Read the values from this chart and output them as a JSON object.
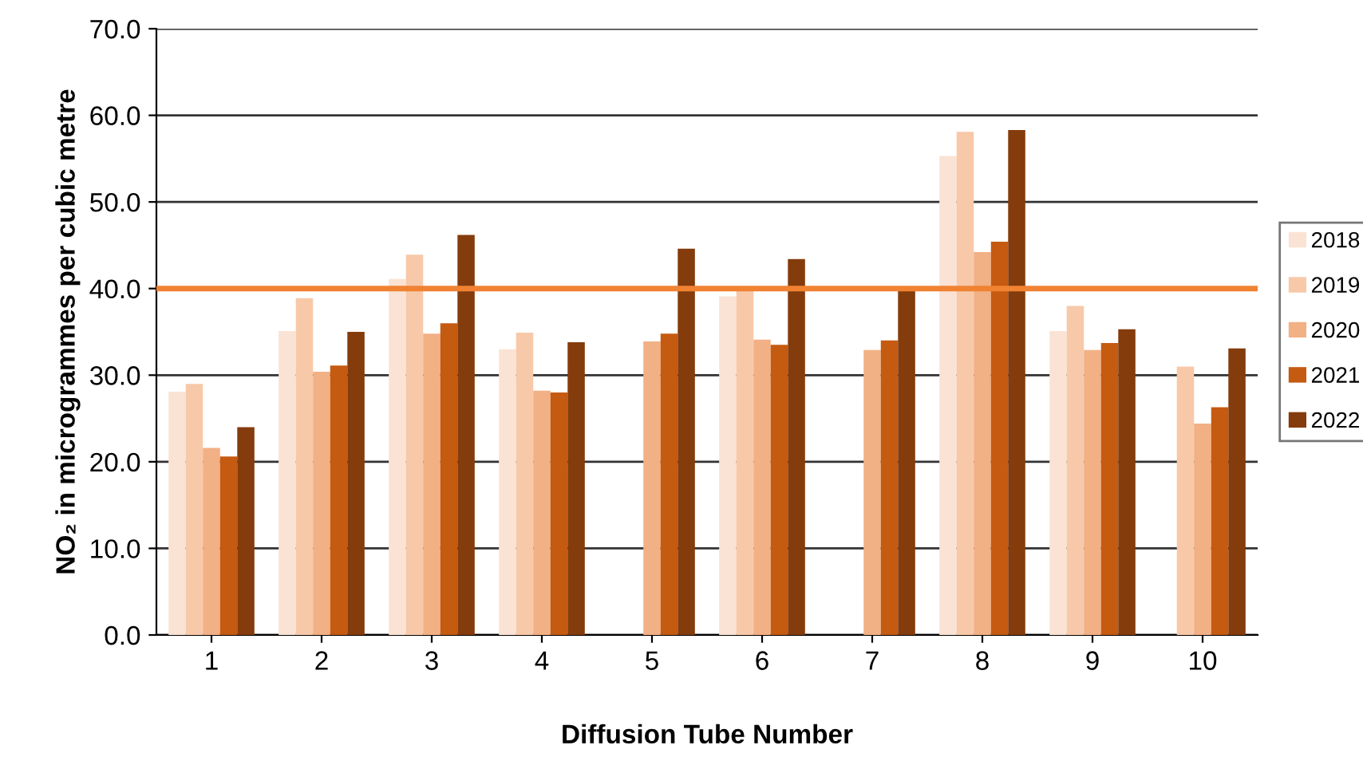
{
  "chart_data": {
    "type": "bar",
    "xlabel": "Diffusion Tube Number",
    "ylabel": "NO₂ in microgrammes per cubic metre",
    "categories": [
      "1",
      "2",
      "3",
      "4",
      "5",
      "6",
      "7",
      "8",
      "9",
      "10"
    ],
    "series": [
      {
        "name": "2018",
        "color": "#fae3d4",
        "values": [
          28.1,
          35.1,
          41.1,
          33.0,
          null,
          39.1,
          null,
          55.3,
          35.1,
          null
        ]
      },
      {
        "name": "2019",
        "color": "#f7c9a9",
        "values": [
          29.0,
          38.9,
          43.9,
          34.9,
          null,
          40.1,
          null,
          58.1,
          38.0,
          31.0
        ]
      },
      {
        "name": "2020",
        "color": "#f2b085",
        "values": [
          21.6,
          30.4,
          34.8,
          28.2,
          33.9,
          34.1,
          32.9,
          44.2,
          32.9,
          24.4
        ]
      },
      {
        "name": "2021",
        "color": "#c55a11",
        "values": [
          20.6,
          31.1,
          36.0,
          28.0,
          34.8,
          33.5,
          34.0,
          45.4,
          33.7,
          26.3
        ]
      },
      {
        "name": "2022",
        "color": "#843c0c",
        "values": [
          24.0,
          35.0,
          46.2,
          33.8,
          44.6,
          43.4,
          39.7,
          58.3,
          35.3,
          33.1
        ]
      }
    ],
    "ylim": [
      0,
      70
    ],
    "yticks": [
      {
        "value": 0,
        "label": "0.0"
      },
      {
        "value": 10,
        "label": "10.0"
      },
      {
        "value": 20,
        "label": "20.0"
      },
      {
        "value": 30,
        "label": "30.0"
      },
      {
        "value": 40,
        "label": "40.0"
      },
      {
        "value": 50,
        "label": "50.0"
      },
      {
        "value": 60,
        "label": "60.0"
      },
      {
        "value": 70,
        "label": "70.0"
      }
    ],
    "ref_lines": [
      {
        "axis": "y",
        "value": 40,
        "label": null,
        "color": "#f08232"
      }
    ],
    "grid": "y",
    "legend": "right"
  }
}
